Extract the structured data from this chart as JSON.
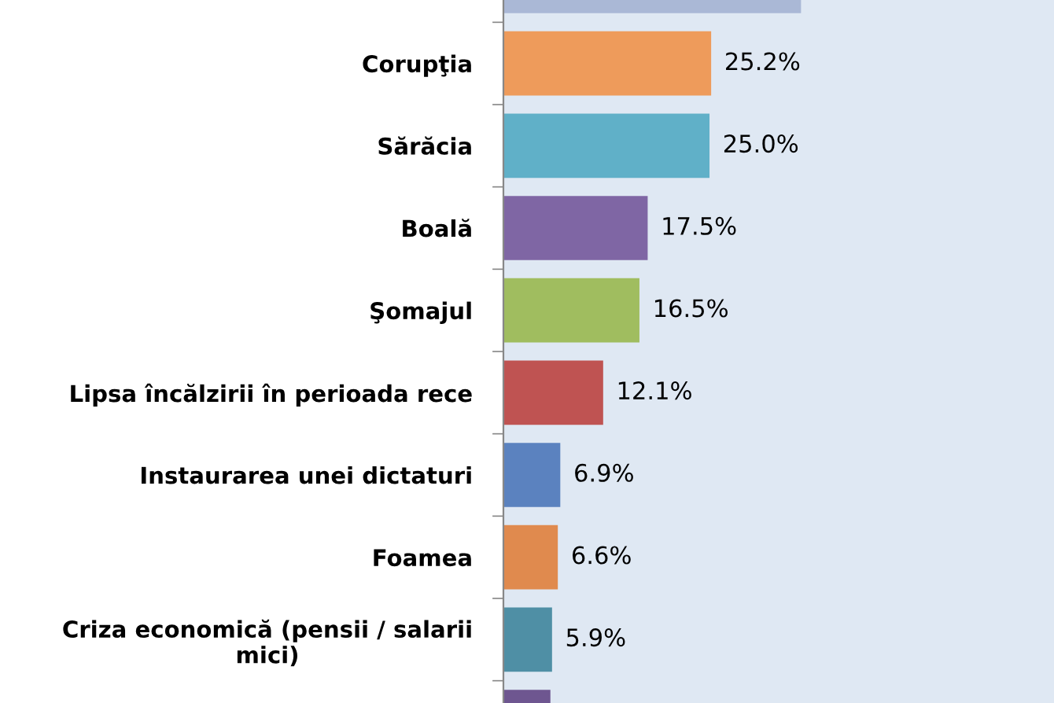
{
  "chart_data": {
    "type": "bar",
    "orientation": "horizontal",
    "categories": [
      null,
      "Corupţia",
      "Sărăcia",
      "Boală",
      "Şomajul",
      "Lipsa încălzirii în perioada rece",
      "Instaurarea unei dictaturi",
      "Foamea",
      "Criza economică (pensii / salarii\nmici)",
      null
    ],
    "values": [
      36.1,
      25.2,
      25.0,
      17.5,
      16.5,
      12.1,
      6.9,
      6.6,
      5.9,
      5.7
    ],
    "colors": [
      "#aab8d6",
      "#ee9b5b",
      "#60b0c8",
      "#7f66a4",
      "#a0bd5f",
      "#bf5352",
      "#5b82bf",
      "#e08a4e",
      "#4f8fa5",
      "#6e5690"
    ],
    "value_labels": [
      null,
      "25.2%",
      "25.0%",
      "17.5%",
      "16.5%",
      "12.1%",
      "6.9%",
      "6.6%",
      "5.9%",
      null
    ],
    "grid": false,
    "legend": false
  }
}
